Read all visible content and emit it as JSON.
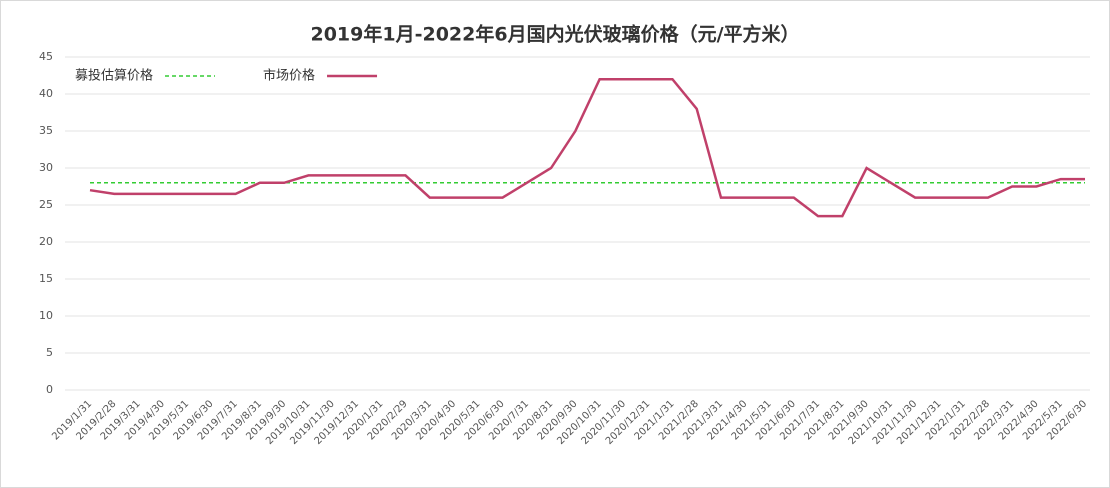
{
  "chart_data": {
    "type": "line",
    "title": "2019年1月-2022年6月国内光伏玻璃价格（元/平方米）",
    "categories": [
      "2019/1/31",
      "2019/2/28",
      "2019/3/31",
      "2019/4/30",
      "2019/5/31",
      "2019/6/30",
      "2019/7/31",
      "2019/8/31",
      "2019/9/30",
      "2019/10/31",
      "2019/11/30",
      "2019/12/31",
      "2020/1/31",
      "2020/2/29",
      "2020/3/31",
      "2020/4/30",
      "2020/5/31",
      "2020/6/30",
      "2020/7/31",
      "2020/8/31",
      "2020/9/30",
      "2020/10/31",
      "2020/11/30",
      "2020/12/31",
      "2021/1/31",
      "2021/2/28",
      "2021/3/31",
      "2021/4/30",
      "2021/5/31",
      "2021/6/30",
      "2021/7/31",
      "2021/8/31",
      "2021/9/30",
      "2021/10/31",
      "2021/11/30",
      "2021/12/31",
      "2022/1/31",
      "2022/2/28",
      "2022/3/31",
      "2022/4/30",
      "2022/5/31",
      "2022/6/30"
    ],
    "series": [
      {
        "name": "募投估算价格",
        "color": "#33cc33",
        "style": "dashed",
        "values": [
          28,
          28,
          28,
          28,
          28,
          28,
          28,
          28,
          28,
          28,
          28,
          28,
          28,
          28,
          28,
          28,
          28,
          28,
          28,
          28,
          28,
          28,
          28,
          28,
          28,
          28,
          28,
          28,
          28,
          28,
          28,
          28,
          28,
          28,
          28,
          28,
          28,
          28,
          28,
          28,
          28,
          28
        ]
      },
      {
        "name": "市场价格",
        "color": "#c0406a",
        "style": "solid",
        "values": [
          27,
          26.5,
          26.5,
          26.5,
          26.5,
          26.5,
          26.5,
          28,
          28,
          29,
          29,
          29,
          29,
          29,
          26,
          26,
          26,
          26,
          28,
          30,
          35,
          42,
          42,
          42,
          42,
          38,
          26,
          26,
          26,
          26,
          23.5,
          23.5,
          30,
          28,
          26,
          26,
          26,
          26,
          27.5,
          27.5,
          28.5,
          28.5
        ]
      }
    ],
    "ylim": [
      0,
      45
    ],
    "yticks": [
      0,
      5,
      10,
      15,
      20,
      25,
      30,
      35,
      40,
      45
    ],
    "grid": true
  }
}
